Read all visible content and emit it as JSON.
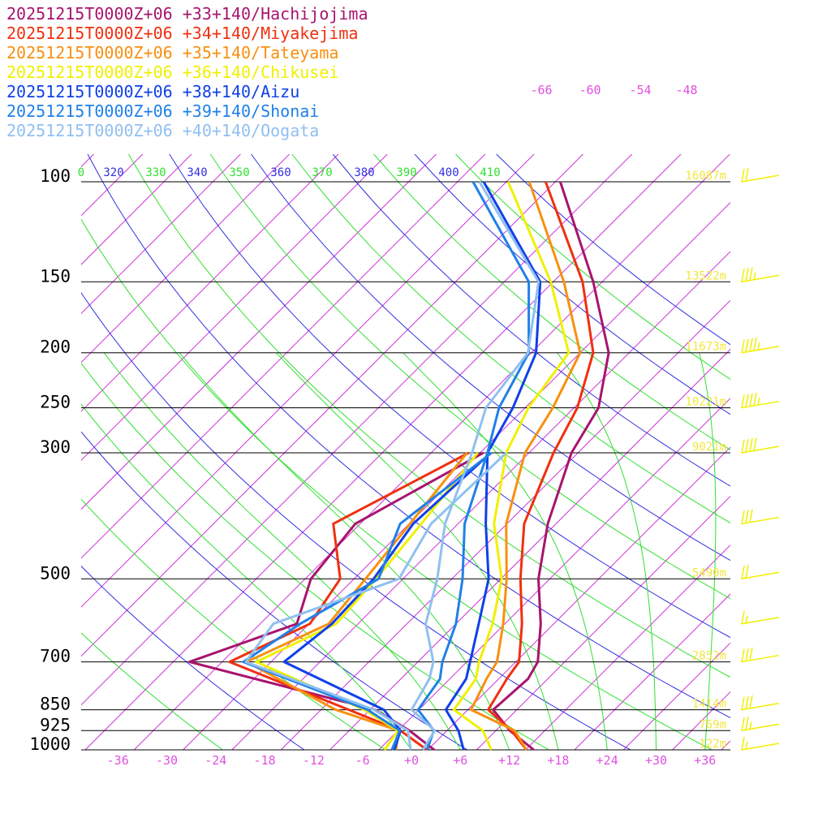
{
  "colors": {
    "background": "#ffffff",
    "isobar": "#000000",
    "isotherm": "#d030d8",
    "dry_adiabat": "#3030e0",
    "moist_adiabat": "#30e030",
    "height_label": "#f2e640",
    "wind_barb": "#f0f000",
    "temp_label": "#e050e0"
  },
  "chart_data": {
    "type": "line",
    "subtype": "skew-T log-P sounding",
    "title": "",
    "xlabel": "",
    "ylabel": "",
    "pressure_levels": [
      100,
      150,
      200,
      250,
      300,
      500,
      700,
      850,
      925,
      1000
    ],
    "pressure_labels": [
      "100",
      "150",
      "200",
      "250",
      "300",
      "500",
      "700",
      "850",
      "925",
      "1000"
    ],
    "temperature_ticks": [
      -36,
      -30,
      -24,
      -18,
      -12,
      -6,
      0,
      6,
      12,
      18,
      24,
      30,
      36
    ],
    "temperature_tick_labels": [
      "-36",
      "-30",
      "-24",
      "-18",
      "-12",
      "-6",
      "+0",
      "+6",
      "+12",
      "+18",
      "+24",
      "+30",
      "+36"
    ],
    "upper_temperature_labels": [
      "-66",
      "-60",
      "-54",
      "-48"
    ],
    "theta_labels": [
      {
        "text": "0",
        "color": "#30e030"
      },
      {
        "text": "320",
        "color": "#3030e0"
      },
      {
        "text": "330",
        "color": "#30e030"
      },
      {
        "text": "340",
        "color": "#3030e0"
      },
      {
        "text": "350",
        "color": "#30e030"
      },
      {
        "text": "360",
        "color": "#3030e0"
      },
      {
        "text": "370",
        "color": "#30e030"
      },
      {
        "text": "380",
        "color": "#3030e0"
      },
      {
        "text": "390",
        "color": "#30e030"
      },
      {
        "text": "400",
        "color": "#3030e0"
      },
      {
        "text": "410",
        "color": "#30e030"
      }
    ],
    "height_labels": [
      {
        "p": 100,
        "text": "16087m"
      },
      {
        "p": 150,
        "text": "13522m"
      },
      {
        "p": 200,
        "text": "11673m"
      },
      {
        "p": 250,
        "text": "10221m"
      },
      {
        "p": 300,
        "text": "9021m"
      },
      {
        "p": 500,
        "text": "5490m"
      },
      {
        "p": 700,
        "text": "2852m"
      },
      {
        "p": 850,
        "text": "1414m"
      },
      {
        "p": 925,
        "text": "769m"
      },
      {
        "p": 1000,
        "text": "122m"
      }
    ],
    "series": [
      {
        "name": "20251215T0000Z+06 +33+140/Hachijojima",
        "color": "#a8146e",
        "temperature": [
          [
            1000,
            15.0
          ],
          [
            925,
            9.7
          ],
          [
            850,
            5.1
          ],
          [
            750,
            5.6
          ],
          [
            700,
            4.7
          ],
          [
            600,
            0.4
          ],
          [
            500,
            -5.4
          ],
          [
            400,
            -11.0
          ],
          [
            300,
            -16.8
          ],
          [
            250,
            -19.0
          ],
          [
            200,
            -24.5
          ],
          [
            150,
            -35.1
          ],
          [
            100,
            -51.4
          ]
        ],
        "dewpoint": [
          [
            1000,
            2.8
          ],
          [
            925,
            -2.6
          ],
          [
            850,
            -9.4
          ],
          [
            700,
            -38.0
          ],
          [
            600,
            -29.5
          ],
          [
            500,
            -33.3
          ],
          [
            400,
            -34.6
          ],
          [
            300,
            -27.6
          ]
        ]
      },
      {
        "name": "20251215T0000Z+06 +34+140/Miyakejima",
        "color": "#f03010",
        "temperature": [
          [
            1000,
            14.1
          ],
          [
            925,
            9.9
          ],
          [
            850,
            4.5
          ],
          [
            750,
            3.0
          ],
          [
            700,
            2.4
          ],
          [
            600,
            -1.9
          ],
          [
            500,
            -7.6
          ],
          [
            400,
            -13.9
          ],
          [
            300,
            -19.0
          ],
          [
            250,
            -21.6
          ],
          [
            200,
            -26.4
          ],
          [
            150,
            -36.4
          ],
          [
            100,
            -53.2
          ]
        ],
        "dewpoint": [
          [
            1000,
            1.9
          ],
          [
            925,
            -3.7
          ],
          [
            850,
            -12.6
          ],
          [
            700,
            -33.1
          ],
          [
            600,
            -27.9
          ],
          [
            500,
            -29.7
          ],
          [
            400,
            -37.3
          ],
          [
            300,
            -29.4
          ]
        ]
      },
      {
        "name": "20251215T0000Z+06 +35+140/Tateyama",
        "color": "#f89010",
        "temperature": [
          [
            1000,
            14.1
          ],
          [
            925,
            10.3
          ],
          [
            850,
            2.4
          ],
          [
            750,
            0.5
          ],
          [
            700,
            -0.3
          ],
          [
            600,
            -4.2
          ],
          [
            500,
            -9.3
          ],
          [
            400,
            -16.1
          ],
          [
            300,
            -22.5
          ],
          [
            250,
            -24.6
          ],
          [
            200,
            -28.0
          ],
          [
            150,
            -38.7
          ],
          [
            100,
            -55.2
          ]
        ],
        "dewpoint": [
          [
            1000,
            -1.9
          ],
          [
            925,
            -3.9
          ],
          [
            850,
            -14.2
          ],
          [
            700,
            -31.0
          ],
          [
            600,
            -25.6
          ],
          [
            500,
            -26.6
          ],
          [
            400,
            -27.9
          ],
          [
            300,
            -29.6
          ]
        ]
      },
      {
        "name": "20251215T0000Z+06 +36+140/Chikusei",
        "color": "#f0f000",
        "temperature": [
          [
            1000,
            9.8
          ],
          [
            925,
            6.4
          ],
          [
            850,
            0.3
          ],
          [
            750,
            -0.8
          ],
          [
            700,
            -2.5
          ],
          [
            600,
            -5.5
          ],
          [
            500,
            -9.9
          ],
          [
            400,
            -17.6
          ],
          [
            300,
            -24.8
          ],
          [
            250,
            -27.6
          ],
          [
            200,
            -29.4
          ],
          [
            150,
            -40.3
          ],
          [
            100,
            -57.8
          ]
        ],
        "dewpoint": [
          [
            1000,
            -3.3
          ],
          [
            925,
            -4.0
          ],
          [
            850,
            -10.7
          ],
          [
            700,
            -29.8
          ],
          [
            600,
            -24.7
          ],
          [
            500,
            -25.3
          ],
          [
            400,
            -26.5
          ],
          [
            300,
            -28.3
          ]
        ]
      },
      {
        "name": "20251215T0000Z+06 +38+140/Aizu",
        "color": "#1040e8",
        "temperature": [
          [
            1000,
            6.4
          ],
          [
            925,
            3.4
          ],
          [
            850,
            -0.7
          ],
          [
            750,
            -2.0
          ],
          [
            700,
            -3.6
          ],
          [
            600,
            -7.2
          ],
          [
            500,
            -11.5
          ],
          [
            400,
            -18.6
          ],
          [
            300,
            -27.1
          ],
          [
            250,
            -29.5
          ],
          [
            200,
            -33.4
          ],
          [
            150,
            -41.6
          ],
          [
            100,
            -60.8
          ]
        ],
        "dewpoint": [
          [
            1000,
            -2.1
          ],
          [
            925,
            -3.7
          ],
          [
            850,
            -8.3
          ],
          [
            700,
            -26.4
          ],
          [
            600,
            -25.2
          ],
          [
            500,
            -25.6
          ],
          [
            400,
            -27.5
          ],
          [
            300,
            -26.7
          ]
        ]
      },
      {
        "name": "20251215T0000Z+06 +39+140/Shonai",
        "color": "#2080e8",
        "temperature": [
          [
            1000,
            1.9
          ],
          [
            925,
            0.4
          ],
          [
            850,
            -4.1
          ],
          [
            750,
            -5.2
          ],
          [
            700,
            -7.0
          ],
          [
            600,
            -10.0
          ],
          [
            500,
            -14.7
          ],
          [
            400,
            -21.2
          ],
          [
            300,
            -27.1
          ],
          [
            250,
            -31.2
          ],
          [
            200,
            -34.3
          ],
          [
            150,
            -43.0
          ],
          [
            100,
            -62.1
          ]
        ],
        "dewpoint": [
          [
            1000,
            -2.4
          ],
          [
            925,
            -3.8
          ],
          [
            850,
            -10.3
          ],
          [
            700,
            -31.4
          ],
          [
            600,
            -29.1
          ],
          [
            500,
            -25.0
          ],
          [
            400,
            -29.1
          ],
          [
            300,
            -26.6
          ]
        ]
      },
      {
        "name": "20251215T0000Z+06 +40+140/Oogata",
        "color": "#90c0f0",
        "temperature": [
          [
            1000,
            1.4
          ],
          [
            925,
            0.5
          ],
          [
            850,
            -4.9
          ],
          [
            750,
            -6.5
          ],
          [
            700,
            -8.1
          ],
          [
            600,
            -13.7
          ],
          [
            500,
            -17.8
          ],
          [
            400,
            -23.6
          ],
          [
            300,
            -29.0
          ],
          [
            250,
            -32.8
          ],
          [
            200,
            -34.4
          ],
          [
            150,
            -41.8
          ],
          [
            100,
            -61.3
          ]
        ],
        "dewpoint": [
          [
            1000,
            -0.1
          ],
          [
            925,
            -2.8
          ],
          [
            850,
            -9.5
          ],
          [
            700,
            -31.1
          ],
          [
            600,
            -32.4
          ],
          [
            500,
            -22.5
          ],
          [
            400,
            -25.3
          ],
          [
            300,
            -24.8
          ]
        ]
      }
    ],
    "wind_barbs": [
      {
        "p": 100,
        "speed_kt": 20
      },
      {
        "p": 150,
        "speed_kt": 35
      },
      {
        "p": 200,
        "speed_kt": 45
      },
      {
        "p": 250,
        "speed_kt": 45
      },
      {
        "p": 300,
        "speed_kt": 40
      },
      {
        "p": 400,
        "speed_kt": 30
      },
      {
        "p": 500,
        "speed_kt": 20
      },
      {
        "p": 600,
        "speed_kt": 15
      },
      {
        "p": 700,
        "speed_kt": 30
      },
      {
        "p": 850,
        "speed_kt": 30
      },
      {
        "p": 925,
        "speed_kt": 25
      },
      {
        "p": 1000,
        "speed_kt": 15
      }
    ]
  }
}
